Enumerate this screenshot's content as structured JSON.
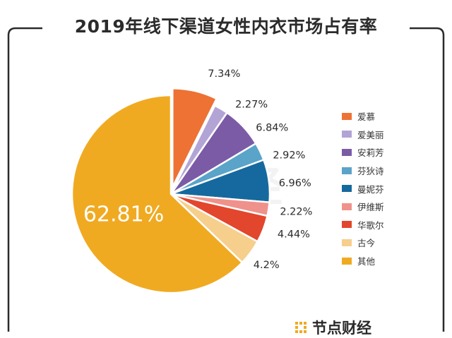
{
  "chart_data": {
    "type": "pie",
    "title": "2019年线下渠道女性内衣市场占有率",
    "slices": [
      {
        "name": "爱慕",
        "value": 7.34,
        "label": "7.34%",
        "color": "#ED7234"
      },
      {
        "name": "爱美丽",
        "value": 2.27,
        "label": "2.27%",
        "color": "#B3A4D6"
      },
      {
        "name": "安莉芳",
        "value": 6.84,
        "label": "6.84%",
        "color": "#7B5BA5"
      },
      {
        "name": "芬狄诗",
        "value": 2.92,
        "label": "2.92%",
        "color": "#5AA3C9"
      },
      {
        "name": "曼妮芬",
        "value": 6.96,
        "label": "6.96%",
        "color": "#16699E"
      },
      {
        "name": "伊维斯",
        "value": 2.22,
        "label": "2.22%",
        "color": "#EF928B"
      },
      {
        "name": "华歌尔",
        "value": 4.44,
        "label": "4.44%",
        "color": "#E2462C"
      },
      {
        "name": "古今",
        "value": 4.2,
        "label": "4.2%",
        "color": "#F6CF8C"
      },
      {
        "name": "其他",
        "value": 62.81,
        "label": "62.81%",
        "color": "#F0AA22"
      }
    ],
    "exploded": "爱慕",
    "legend_position": "right"
  },
  "watermark": "节点财经",
  "brand": {
    "name": "节点财经",
    "logo_color": "#F0AA22"
  },
  "frame_color": "#2b2b2b"
}
